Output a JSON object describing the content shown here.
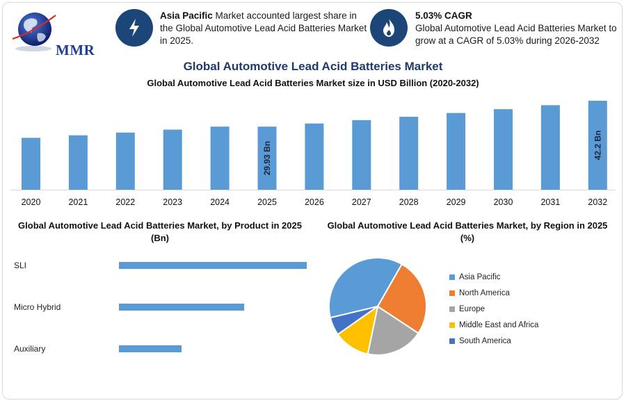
{
  "header": {
    "logo_text": "MMR",
    "highlight1": {
      "bold": "Asia Pacific",
      "text": " Market accounted largest share in the Global Automotive Lead Acid Batteries Market in 2025.",
      "icon": "lightning-icon"
    },
    "highlight2": {
      "bold": "5.03% CAGR",
      "text": "Global Automotive Lead Acid Batteries Market to grow at a CAGR of 5.03% during 2026-2032",
      "icon": "flame-icon"
    }
  },
  "title": "Global Automotive Lead Acid Batteries Market",
  "colors": {
    "bar": "#5b9bd5",
    "navy": "#1c4677",
    "title": "#1f3a6e",
    "north_america": "#ed7d31",
    "europe": "#a5a5a5",
    "mea": "#ffc000",
    "south_america": "#4472c4"
  },
  "chart_data": [
    {
      "type": "bar",
      "title": "Global Automotive Lead Acid Batteries Market size in USD Billion (2020-2032)",
      "categories": [
        "2020",
        "2021",
        "2022",
        "2023",
        "2024",
        "2025",
        "2026",
        "2027",
        "2028",
        "2029",
        "2030",
        "2031",
        "2032"
      ],
      "values": [
        24.6,
        25.8,
        27.1,
        28.5,
        29.93,
        29.93,
        31.4,
        33.0,
        34.6,
        36.4,
        38.2,
        40.1,
        42.2
      ],
      "data_labels": [
        {
          "index": 5,
          "text": "29.93 Bn"
        },
        {
          "index": 12,
          "text": "42.2 Bn"
        }
      ],
      "ylim": [
        0,
        42.2
      ],
      "grid": false
    },
    {
      "type": "bar",
      "orientation": "horizontal",
      "title": "Global Automotive Lead Acid Batteries Market, by Product in 2025 (Bn)",
      "categories": [
        "SLI",
        "Micro Hybrid",
        "Auxiliary"
      ],
      "values": [
        18.0,
        12.0,
        6.0
      ],
      "xlim": [
        0,
        18.0
      ]
    },
    {
      "type": "pie",
      "title": "Global Automotive Lead Acid Batteries Market, by Region in 2025 (%)",
      "labels": [
        "Asia Pacific",
        "North America",
        "Europe",
        "Middle East and Africa",
        "South America"
      ],
      "values": [
        37,
        26,
        19,
        12,
        6
      ],
      "legend": "right"
    }
  ]
}
